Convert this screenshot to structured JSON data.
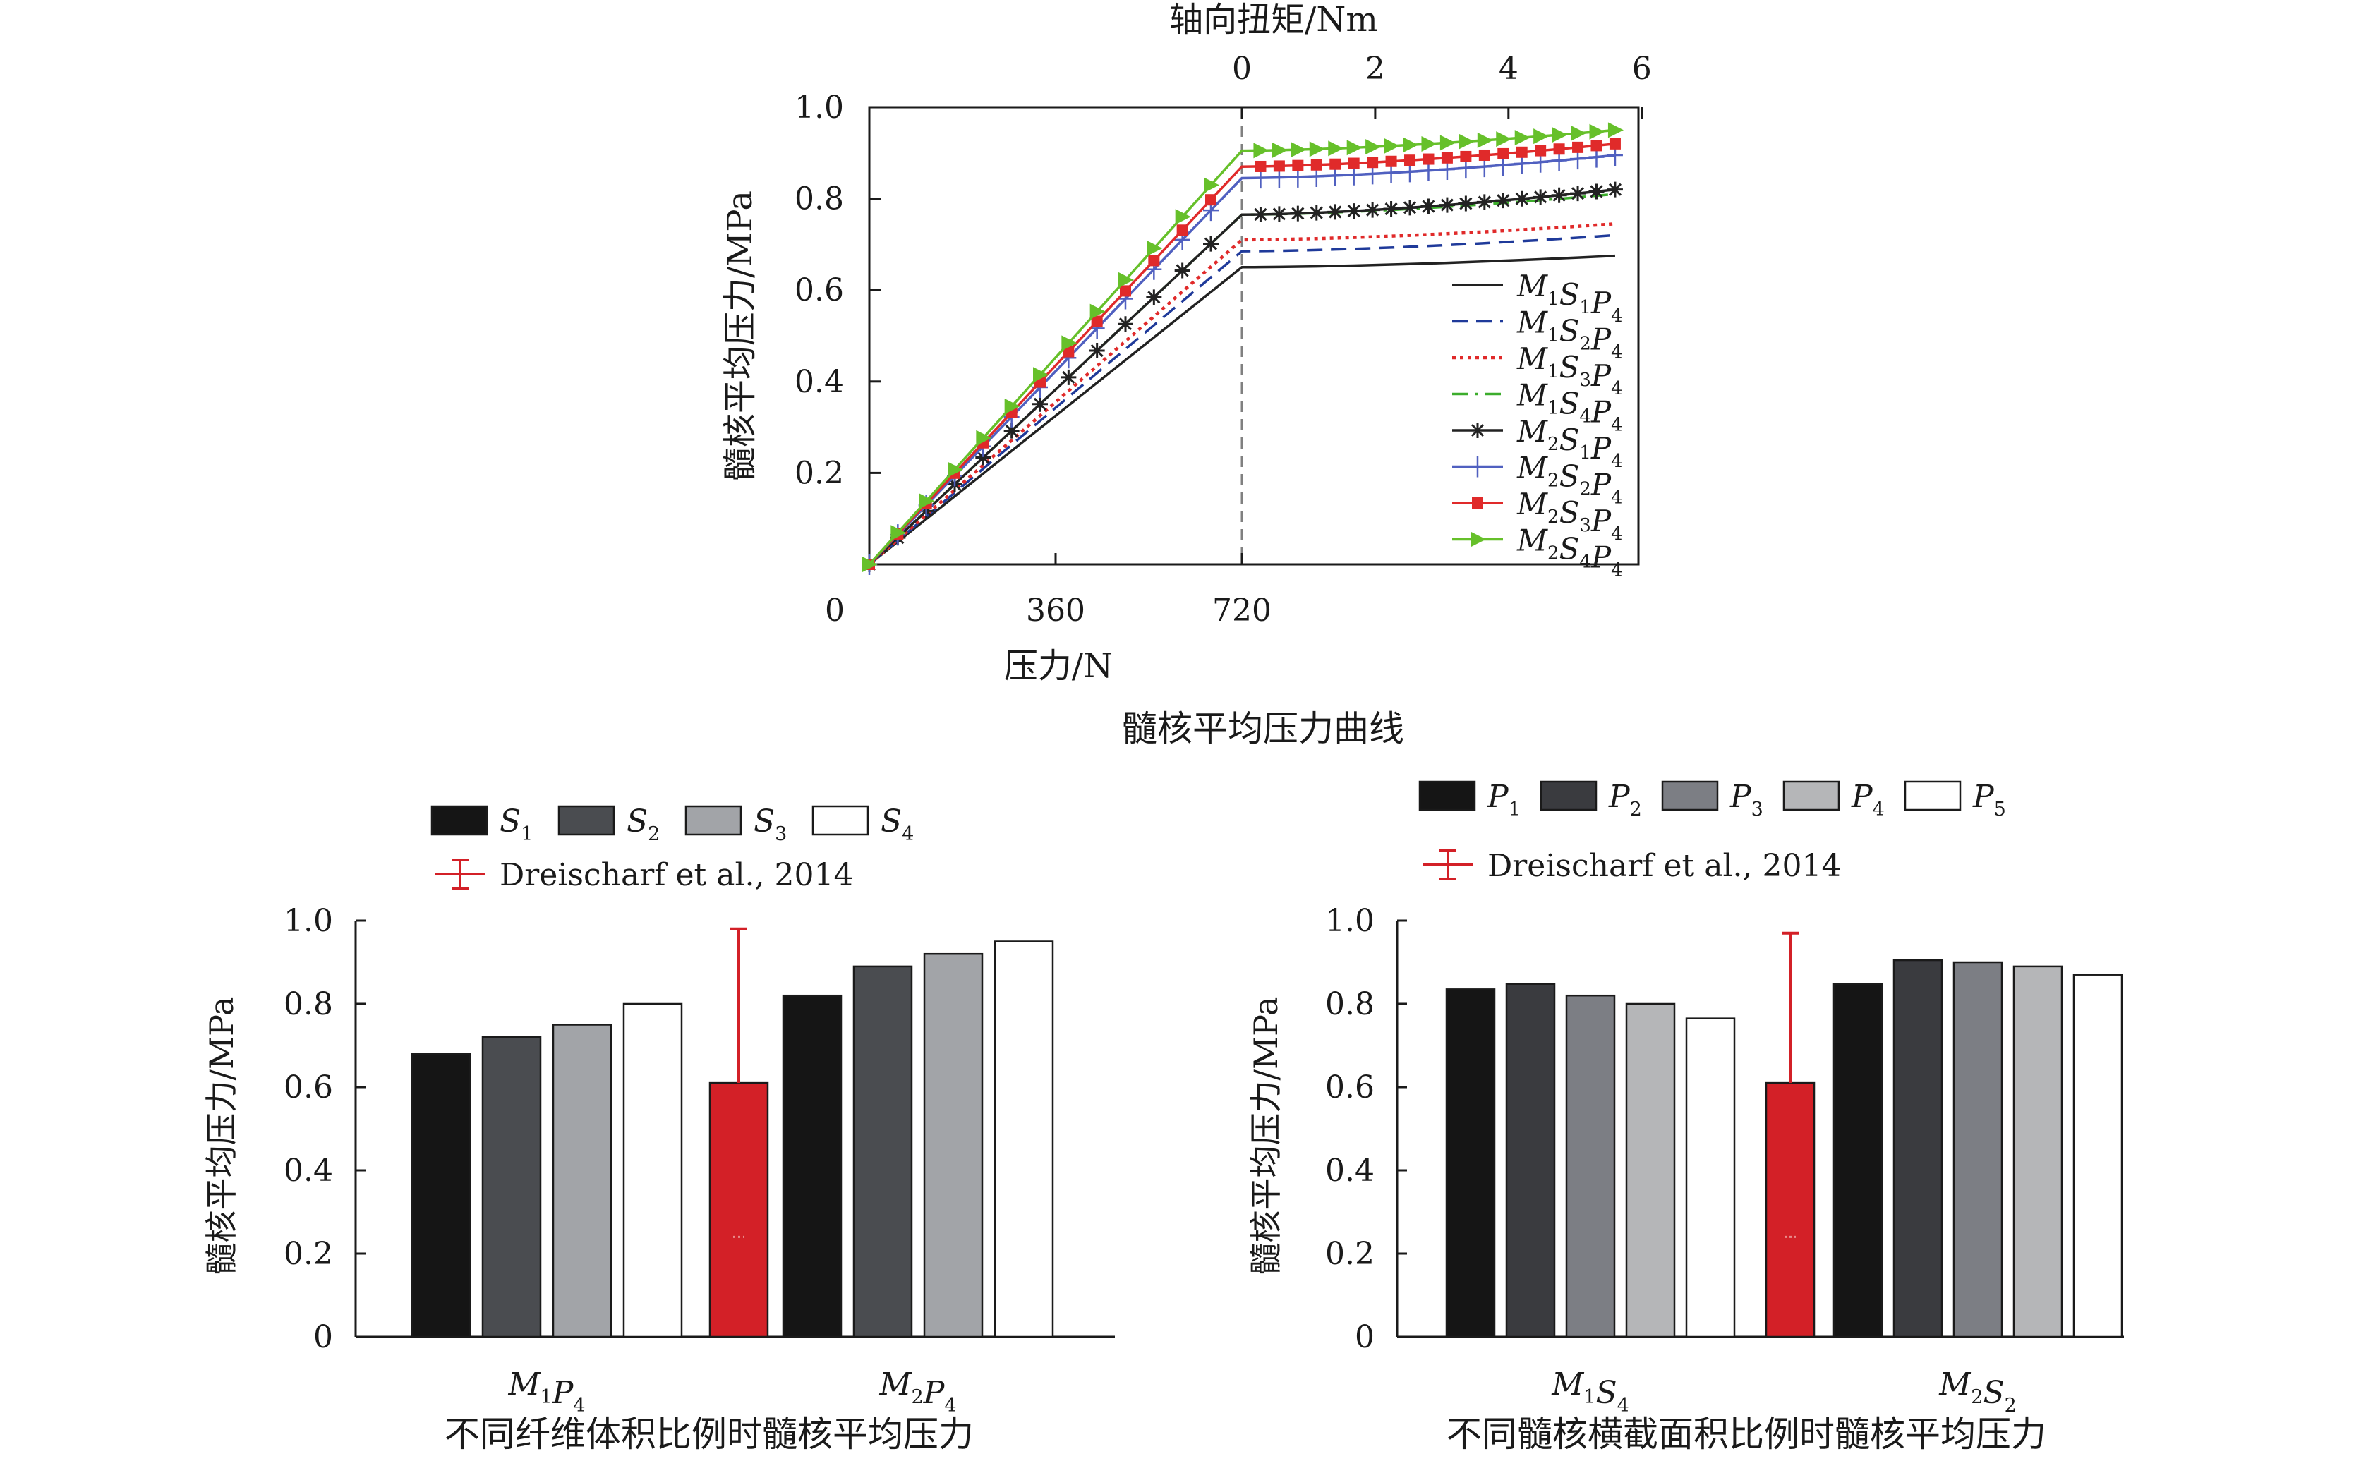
{
  "chart_data": [
    {
      "type": "line",
      "caption": "髓核平均压力曲线",
      "ylabel": "髓核平均压力/MPa",
      "xlabel_bottom": "压力/N",
      "xlabel_top": "轴向扭矩/Nm",
      "ylim": [
        0,
        1.0
      ],
      "yticks": [
        "1.0",
        "0.8",
        "0.6",
        "0.4",
        "0.2"
      ],
      "x_bottom_ticks": [
        "0",
        "360",
        "720"
      ],
      "x_top_ticks": [
        "0",
        "2",
        "4",
        "6"
      ],
      "compression_range_N": [
        0,
        720
      ],
      "torque_range_Nm": [
        0,
        5.6
      ],
      "divider": "dashed vertical line at 720 N / 0 Nm",
      "legend_position": "bottom-right",
      "series": [
        {
          "name": {
            "base": [
              "M",
              "S",
              "P"
            ],
            "subs": [
              "1",
              "1",
              "4"
            ]
          },
          "style": "solid",
          "color": "#222222",
          "marker": "none",
          "compression_end": 0.65,
          "torque_end": 0.675
        },
        {
          "name": {
            "base": [
              "M",
              "S",
              "P"
            ],
            "subs": [
              "1",
              "2",
              "4"
            ]
          },
          "style": "dashed",
          "color": "#1f3a9a",
          "marker": "none",
          "compression_end": 0.685,
          "torque_end": 0.72
        },
        {
          "name": {
            "base": [
              "M",
              "S",
              "P"
            ],
            "subs": [
              "1",
              "3",
              "4"
            ]
          },
          "style": "dotted",
          "color": "#e02a2a",
          "marker": "none",
          "compression_end": 0.71,
          "torque_end": 0.745
        },
        {
          "name": {
            "base": [
              "M",
              "S",
              "P"
            ],
            "subs": [
              "1",
              "4",
              "4"
            ]
          },
          "style": "dashdot",
          "color": "#3cad2c",
          "marker": "none",
          "compression_end": 0.765,
          "torque_end": 0.81
        },
        {
          "name": {
            "base": [
              "M",
              "S",
              "P"
            ],
            "subs": [
              "2",
              "1",
              "4"
            ]
          },
          "style": "solid",
          "color": "#222222",
          "marker": "star",
          "compression_end": 0.765,
          "torque_end": 0.82
        },
        {
          "name": {
            "base": [
              "M",
              "S",
              "P"
            ],
            "subs": [
              "2",
              "2",
              "4"
            ]
          },
          "style": "solid",
          "color": "#5060c0",
          "marker": "plus",
          "compression_end": 0.845,
          "torque_end": 0.895
        },
        {
          "name": {
            "base": [
              "M",
              "S",
              "P"
            ],
            "subs": [
              "2",
              "3",
              "4"
            ]
          },
          "style": "solid",
          "color": "#e02a2a",
          "marker": "square",
          "compression_end": 0.87,
          "torque_end": 0.92
        },
        {
          "name": {
            "base": [
              "M",
              "S",
              "P"
            ],
            "subs": [
              "2",
              "4",
              "4"
            ]
          },
          "style": "solid",
          "color": "#66c02a",
          "marker": "triangle-right",
          "compression_end": 0.905,
          "torque_end": 0.95
        }
      ]
    },
    {
      "type": "bar",
      "caption": "不同纤维体积比例时髓核平均压力",
      "ylabel": "髓核平均压力/MPa",
      "ylim": [
        0,
        1.0
      ],
      "yticks": [
        "1.0",
        "0.8",
        "0.6",
        "0.4",
        "0.2",
        "0"
      ],
      "groups": [
        {
          "label": {
            "base": [
              "M",
              "P"
            ],
            "subs": [
              "1",
              "4"
            ]
          },
          "values": [
            0.68,
            0.72,
            0.75,
            0.8
          ]
        },
        {
          "label": {
            "base": [
              "M",
              "P"
            ],
            "subs": [
              "2",
              "4"
            ]
          },
          "values": [
            0.82,
            0.89,
            0.92,
            0.95
          ]
        }
      ],
      "legend": [
        {
          "label": {
            "base": [
              "S"
            ],
            "subs": [
              "1"
            ]
          },
          "color": "#151515"
        },
        {
          "label": {
            "base": [
              "S"
            ],
            "subs": [
              "2"
            ]
          },
          "color": "#4a4c50"
        },
        {
          "label": {
            "base": [
              "S"
            ],
            "subs": [
              "3"
            ]
          },
          "color": "#a2a4a8"
        },
        {
          "label": {
            "base": [
              "S"
            ],
            "subs": [
              "4"
            ]
          },
          "color": "#ffffff"
        }
      ],
      "reference": {
        "label": "Dreischarf et al., 2014",
        "value": 0.61,
        "err_high": 0.98,
        "err_low": 0.24,
        "color": "#d32027"
      },
      "legend_position": "top"
    },
    {
      "type": "bar",
      "caption": "不同髓核横截面积比例时髓核平均压力",
      "ylabel": "髓核平均压力/MPa",
      "ylim": [
        0,
        1.0
      ],
      "yticks": [
        "1.0",
        "0.8",
        "0.6",
        "0.4",
        "0.2",
        "0"
      ],
      "groups": [
        {
          "label": {
            "base": [
              "M",
              "S"
            ],
            "subs": [
              "1",
              "4"
            ]
          },
          "values": [
            0.835,
            0.848,
            0.82,
            0.8,
            0.765
          ]
        },
        {
          "label": {
            "base": [
              "M",
              "S"
            ],
            "subs": [
              "2",
              "2"
            ]
          },
          "values": [
            0.848,
            0.905,
            0.9,
            0.89,
            0.87
          ]
        }
      ],
      "legend": [
        {
          "label": {
            "base": [
              "P"
            ],
            "subs": [
              "1"
            ]
          },
          "color": "#151515"
        },
        {
          "label": {
            "base": [
              "P"
            ],
            "subs": [
              "2"
            ]
          },
          "color": "#3a3b3f"
        },
        {
          "label": {
            "base": [
              "P"
            ],
            "subs": [
              "3"
            ]
          },
          "color": "#7c7e84"
        },
        {
          "label": {
            "base": [
              "P"
            ],
            "subs": [
              "4"
            ]
          },
          "color": "#b5b6b8"
        },
        {
          "label": {
            "base": [
              "P"
            ],
            "subs": [
              "5"
            ]
          },
          "color": "#ffffff"
        }
      ],
      "reference": {
        "label": "Dreischarf et al., 2014",
        "value": 0.61,
        "err_high": 0.97,
        "err_low": 0.24,
        "color": "#d32027"
      },
      "legend_position": "top"
    }
  ]
}
